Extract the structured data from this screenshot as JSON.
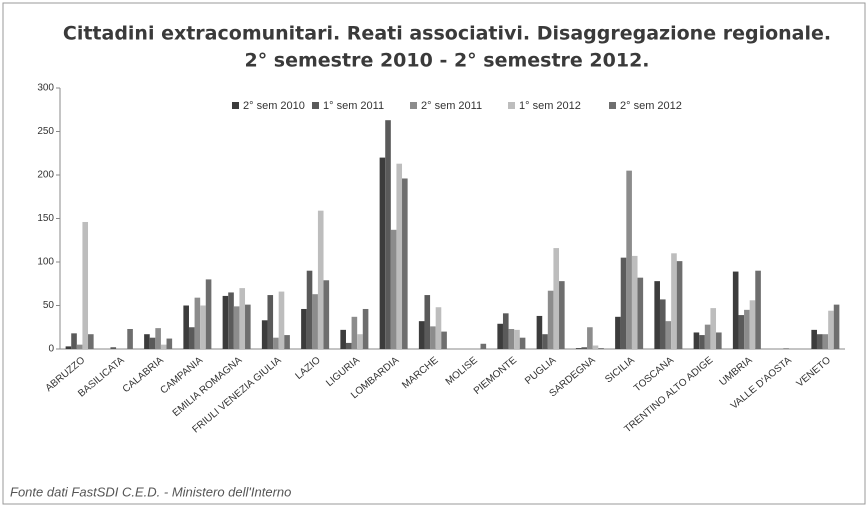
{
  "chart_data": {
    "type": "bar",
    "title": "Cittadini extracomunitari. Reati associativi. Disaggregazione regionale.",
    "subtitle": "2° semestre 2010 - 2° semestre 2012.",
    "source": "Fonte dati FastSDI C.E.D. - Ministero dell'Interno",
    "categories": [
      "ABRUZZO",
      "BASILICATA",
      "CALABRIA",
      "CAMPANIA",
      "EMILIA ROMAGNA",
      "FRIULI VENEZIA GIULIA",
      "LAZIO",
      "LIGURIA",
      "LOMBARDIA",
      "MARCHE",
      "MOLISE",
      "PIEMONTE",
      "PUGLIA",
      "SARDEGNA",
      "SICILIA",
      "TOSCANA",
      "TRENTINO ALTO ADIGE",
      "UMBRIA",
      "VALLE D'AOSTA",
      "VENETO"
    ],
    "series": [
      {
        "name": "2° sem 2010",
        "color": "#3c3c3c",
        "values": [
          3,
          0,
          17,
          50,
          61,
          33,
          46,
          22,
          220,
          32,
          0,
          29,
          38,
          1,
          37,
          78,
          19,
          89,
          0,
          22
        ]
      },
      {
        "name": "1° sem 2011",
        "color": "#5a5a5a",
        "values": [
          18,
          2,
          13,
          25,
          65,
          62,
          90,
          7,
          263,
          62,
          0,
          41,
          17,
          2,
          105,
          57,
          16,
          39,
          0,
          17
        ]
      },
      {
        "name": "2° sem 2011",
        "color": "#8c8c8c",
        "values": [
          5,
          0,
          24,
          59,
          49,
          13,
          63,
          37,
          137,
          26,
          0,
          23,
          67,
          25,
          205,
          32,
          28,
          45,
          1,
          17
        ]
      },
      {
        "name": "1° sem 2012",
        "color": "#bdbdbd",
        "values": [
          146,
          0,
          5,
          50,
          70,
          66,
          159,
          17,
          213,
          48,
          0,
          22,
          116,
          4,
          107,
          110,
          47,
          56,
          0,
          44
        ]
      },
      {
        "name": "2° sem 2012",
        "color": "#6e6e6e",
        "values": [
          17,
          23,
          12,
          80,
          51,
          16,
          79,
          46,
          196,
          20,
          6,
          13,
          78,
          1,
          82,
          101,
          19,
          90,
          0,
          51
        ]
      }
    ],
    "ylim": [
      0,
      300
    ],
    "yticks": [
      0,
      50,
      100,
      150,
      200,
      250,
      300
    ],
    "grid": false,
    "legend": "top"
  }
}
